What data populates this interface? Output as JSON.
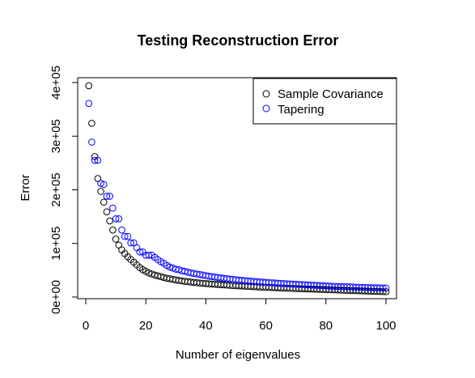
{
  "chart_data": {
    "type": "scatter",
    "title": "Testing Reconstruction Error",
    "xlabel": "Number of eigenvalues",
    "ylabel": "Error",
    "xlim": [
      0,
      100
    ],
    "ylim": [
      0,
      400000
    ],
    "x_ticks": [
      0,
      20,
      40,
      60,
      80,
      100
    ],
    "x_tick_labels": [
      "0",
      "20",
      "40",
      "60",
      "80",
      "100"
    ],
    "y_ticks": [
      0,
      100000,
      200000,
      300000,
      400000
    ],
    "y_tick_labels": [
      "0e+00",
      "1e+05",
      "2e+05",
      "3e+05",
      "4e+05"
    ],
    "grid": false,
    "legend_position": "top-right",
    "x": [
      1,
      2,
      3,
      4,
      5,
      6,
      7,
      8,
      9,
      10,
      11,
      12,
      13,
      14,
      15,
      16,
      17,
      18,
      19,
      20,
      21,
      22,
      23,
      24,
      25,
      26,
      27,
      28,
      29,
      30,
      31,
      32,
      33,
      34,
      35,
      36,
      37,
      38,
      39,
      40,
      41,
      42,
      43,
      44,
      45,
      46,
      47,
      48,
      49,
      50,
      51,
      52,
      53,
      54,
      55,
      56,
      57,
      58,
      59,
      60,
      61,
      62,
      63,
      64,
      65,
      66,
      67,
      68,
      69,
      70,
      71,
      72,
      73,
      74,
      75,
      76,
      77,
      78,
      79,
      80,
      81,
      82,
      83,
      84,
      85,
      86,
      87,
      88,
      89,
      90,
      91,
      92,
      93,
      94,
      95,
      96,
      97,
      98,
      99,
      100
    ],
    "series": [
      {
        "name": "Sample Covariance",
        "color": "#000000",
        "values": [
          394000,
          324000,
          262000,
          221000,
          197000,
          177000,
          159000,
          142000,
          125000,
          108000,
          97000,
          88000,
          81000,
          75000,
          70000,
          65000,
          60000,
          55000,
          51000,
          48000,
          45000,
          43000,
          41000,
          39500,
          38000,
          36500,
          35000,
          34000,
          33000,
          32000,
          31000,
          30200,
          29400,
          28700,
          28000,
          27400,
          26800,
          26200,
          25700,
          25200,
          24700,
          24300,
          23900,
          23500,
          23100,
          22700,
          22300,
          21900,
          21500,
          21200,
          20900,
          20600,
          20300,
          20000,
          19700,
          19400,
          19100,
          18800,
          18500,
          18300,
          18100,
          17800,
          17500,
          17300,
          17100,
          16900,
          16600,
          16400,
          16200,
          16000,
          15800,
          15600,
          15400,
          15200,
          15000,
          14800,
          14600,
          14400,
          14200,
          14000,
          13800,
          13600,
          13400,
          13200,
          13000,
          12800,
          12600,
          12400,
          12200,
          12000,
          11800,
          11600,
          11400,
          11200,
          11000,
          10800,
          10600,
          10400,
          10200,
          10000
        ]
      },
      {
        "name": "Tapering",
        "color": "#0000ff",
        "values": [
          361000,
          289000,
          255000,
          255000,
          212000,
          210000,
          188000,
          188000,
          166000,
          146000,
          146000,
          125000,
          113000,
          113000,
          101000,
          101000,
          92000,
          84000,
          84000,
          78000,
          78000,
          78000,
          74000,
          70000,
          66000,
          63000,
          59000,
          56000,
          54000,
          52000,
          51000,
          49000,
          48000,
          46500,
          45000,
          44000,
          43000,
          42000,
          41000,
          40000,
          39000,
          38200,
          37400,
          36600,
          35800,
          35000,
          34300,
          33600,
          33000,
          32400,
          31800,
          31200,
          30700,
          30200,
          29700,
          29200,
          28700,
          28200,
          27800,
          27400,
          27000,
          26600,
          26200,
          25800,
          25400,
          25000,
          24700,
          24400,
          24100,
          23800,
          23500,
          23200,
          22900,
          22600,
          22300,
          22000,
          21700,
          21400,
          21100,
          20800,
          20500,
          20200,
          19900,
          19700,
          19500,
          19300,
          19100,
          18900,
          18700,
          18500,
          18300,
          18100,
          17900,
          17700,
          17500,
          17300,
          17200,
          17100,
          17000,
          16900
        ]
      }
    ]
  }
}
